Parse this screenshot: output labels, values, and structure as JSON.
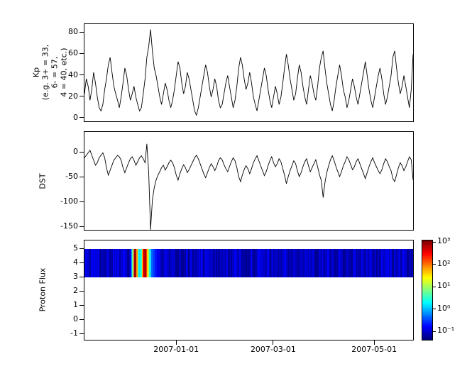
{
  "figure": {
    "background": "#ffffff",
    "line_color": "#000000",
    "colormap": "jet"
  },
  "xaxis": {
    "ticks": [
      {
        "label": "2007-01-01",
        "f": 0.28
      },
      {
        "label": "2007-03-01",
        "f": 0.574
      },
      {
        "label": "2007-05-01",
        "f": 0.88
      }
    ]
  },
  "chart_data": [
    {
      "type": "line",
      "name": "kp",
      "ylabel_lines": [
        "Kp",
        "(e.g. 3+ = 33,",
        "6- = 57,",
        "4 = 40, etc.)"
      ],
      "ylim": [
        -4,
        88
      ],
      "yticks": [
        0,
        20,
        40,
        60,
        80
      ],
      "x_start": "2006-11-06",
      "x_end": "2007-05-25",
      "values": [
        23,
        37,
        30,
        17,
        27,
        43,
        33,
        20,
        10,
        7,
        13,
        27,
        37,
        50,
        57,
        43,
        30,
        23,
        17,
        10,
        20,
        33,
        47,
        40,
        27,
        17,
        23,
        30,
        20,
        13,
        7,
        10,
        23,
        37,
        57,
        67,
        83,
        63,
        47,
        40,
        30,
        20,
        13,
        23,
        33,
        27,
        17,
        10,
        17,
        27,
        40,
        53,
        47,
        33,
        23,
        30,
        43,
        37,
        27,
        17,
        7,
        3,
        10,
        20,
        30,
        40,
        50,
        43,
        30,
        20,
        27,
        37,
        30,
        17,
        10,
        13,
        23,
        33,
        40,
        30,
        20,
        10,
        17,
        30,
        47,
        57,
        50,
        37,
        27,
        33,
        43,
        33,
        20,
        13,
        7,
        17,
        27,
        37,
        47,
        40,
        27,
        17,
        10,
        20,
        30,
        23,
        13,
        20,
        33,
        47,
        60,
        50,
        37,
        27,
        17,
        23,
        37,
        50,
        43,
        30,
        20,
        13,
        27,
        40,
        33,
        23,
        17,
        30,
        47,
        57,
        63,
        47,
        33,
        23,
        13,
        7,
        17,
        30,
        40,
        50,
        40,
        27,
        20,
        10,
        17,
        27,
        37,
        30,
        20,
        13,
        23,
        33,
        43,
        53,
        40,
        27,
        17,
        10,
        20,
        30,
        40,
        47,
        37,
        23,
        13,
        20,
        30,
        40,
        57,
        63,
        47,
        33,
        23,
        30,
        40,
        30,
        20,
        10,
        27,
        60
      ]
    },
    {
      "type": "line",
      "name": "dst",
      "ylabel": "DST",
      "ylim": [
        -158,
        42
      ],
      "yticks": [
        0,
        -50,
        -100,
        -150
      ],
      "values": [
        -10,
        -5,
        0,
        5,
        -5,
        -15,
        -25,
        -20,
        -10,
        -5,
        0,
        -10,
        -30,
        -45,
        -35,
        -25,
        -15,
        -10,
        -5,
        -8,
        -15,
        -30,
        -40,
        -30,
        -20,
        -12,
        -8,
        -15,
        -25,
        -18,
        -10,
        -6,
        -12,
        -20,
        18,
        -40,
        -155,
        -95,
        -70,
        -55,
        -45,
        -38,
        -30,
        -25,
        -35,
        -28,
        -20,
        -15,
        -20,
        -30,
        -45,
        -55,
        -42,
        -32,
        -24,
        -30,
        -40,
        -34,
        -26,
        -18,
        -10,
        -5,
        -12,
        -22,
        -32,
        -42,
        -50,
        -40,
        -30,
        -22,
        -28,
        -36,
        -28,
        -16,
        -10,
        -14,
        -24,
        -32,
        -38,
        -28,
        -18,
        -10,
        -16,
        -30,
        -48,
        -58,
        -45,
        -34,
        -26,
        -32,
        -42,
        -32,
        -20,
        -12,
        -6,
        -16,
        -26,
        -36,
        -46,
        -38,
        -26,
        -16,
        -8,
        -20,
        -28,
        -22,
        -12,
        -18,
        -32,
        -45,
        -62,
        -48,
        -36,
        -26,
        -16,
        -22,
        -36,
        -48,
        -40,
        -28,
        -18,
        -12,
        -26,
        -38,
        -30,
        -22,
        -14,
        -28,
        -44,
        -56,
        -90,
        -60,
        -40,
        -26,
        -14,
        -6,
        -16,
        -28,
        -38,
        -48,
        -38,
        -26,
        -18,
        -8,
        -14,
        -24,
        -34,
        -28,
        -18,
        -12,
        -22,
        -32,
        -42,
        -52,
        -40,
        -28,
        -18,
        -10,
        -20,
        -28,
        -36,
        -42,
        -34,
        -22,
        -12,
        -18,
        -28,
        -36,
        -52,
        -58,
        -44,
        -30,
        -20,
        -26,
        -36,
        -28,
        -18,
        -8,
        -14,
        -55
      ]
    },
    {
      "type": "heatmap",
      "name": "proton_flux",
      "ylabel": "Proton Flux",
      "ylim": [
        -1.5,
        5.6
      ],
      "yticks": [
        5,
        4,
        3,
        2,
        1,
        0,
        -1
      ],
      "band": [
        3,
        5
      ],
      "background_log10": -1.1,
      "event_profile": [
        [
          0.14,
          -1.0
        ],
        [
          0.147,
          0.8
        ],
        [
          0.152,
          3.0
        ],
        [
          0.157,
          2.8
        ],
        [
          0.162,
          1.0
        ],
        [
          0.167,
          0.0
        ],
        [
          0.173,
          0.6
        ],
        [
          0.179,
          2.6
        ],
        [
          0.185,
          3.0
        ],
        [
          0.191,
          1.8
        ],
        [
          0.197,
          0.6
        ],
        [
          0.205,
          -0.4
        ],
        [
          0.225,
          -1.0
        ]
      ],
      "colorbar": {
        "range": [
          -1.4,
          3.1
        ],
        "ticks": [
          {
            "label": "10³",
            "log": 3
          },
          {
            "label": "10²",
            "log": 2
          },
          {
            "label": "10¹",
            "log": 1
          },
          {
            "label": "10⁰",
            "log": 0
          },
          {
            "label": "10⁻¹",
            "log": -1
          }
        ]
      }
    }
  ]
}
